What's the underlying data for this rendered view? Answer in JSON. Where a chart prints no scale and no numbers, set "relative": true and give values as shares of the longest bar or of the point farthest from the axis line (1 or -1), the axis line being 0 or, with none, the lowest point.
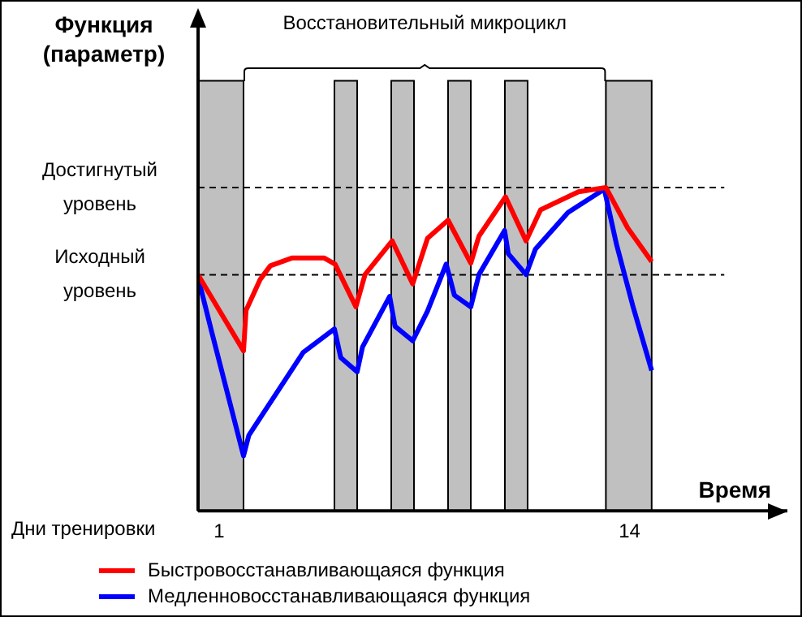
{
  "chart_data": {
    "type": "line",
    "relative": true,
    "xlabel": "Время",
    "xlim": [
      0.33,
      19
    ],
    "xticks": [
      1,
      14
    ],
    "series": [
      {
        "name": "Быстровосстанавливающаяся функция",
        "color": "#ff0000",
        "x": [
          0.33,
          1.77,
          1.85,
          2.3,
          2.62,
          3.3,
          4.33,
          4.67,
          5.33,
          5.62,
          6.48,
          7.13,
          7.6,
          8.25,
          8.97,
          9.23,
          10.07,
          10.72,
          11.18,
          12.38,
          13.25,
          13.94,
          14.7
        ],
        "values": [
          0.73,
          0.495,
          0.62,
          0.716,
          0.758,
          0.782,
          0.782,
          0.763,
          0.631,
          0.731,
          0.835,
          0.702,
          0.843,
          0.899,
          0.766,
          0.85,
          0.971,
          0.835,
          0.931,
          0.987,
          1.0,
          0.875,
          0.771
        ]
      },
      {
        "name": "Медленновосстанавливающаяся функция",
        "color": "#0000ff",
        "x": [
          0.33,
          0.76,
          1.77,
          1.94,
          2.8,
          3.66,
          4.65,
          4.85,
          5.37,
          5.54,
          6.4,
          6.57,
          7.13,
          7.6,
          8.19,
          8.45,
          8.97,
          9.23,
          10.04,
          10.16,
          10.72,
          11.02,
          12.05,
          13.2,
          13.58,
          14.1,
          14.7
        ],
        "values": [
          0.722,
          0.554,
          0.17,
          0.234,
          0.362,
          0.49,
          0.5625,
          0.474,
          0.43,
          0.507,
          0.663,
          0.571,
          0.526,
          0.618,
          0.763,
          0.667,
          0.631,
          0.731,
          0.867,
          0.795,
          0.731,
          0.81,
          0.923,
          0.995,
          0.827,
          0.635,
          0.434
        ]
      }
    ],
    "bands": [
      {
        "axis": "x",
        "from": 0.33,
        "to": 1.77,
        "color": "#c0c0c0"
      },
      {
        "axis": "x",
        "from": 4.65,
        "to": 5.37,
        "color": "#c0c0c0"
      },
      {
        "axis": "x",
        "from": 6.45,
        "to": 7.17,
        "color": "#c0c0c0"
      },
      {
        "axis": "x",
        "from": 8.25,
        "to": 8.97,
        "color": "#c0c0c0"
      },
      {
        "axis": "x",
        "from": 10.05,
        "to": 10.77,
        "color": "#c0c0c0"
      },
      {
        "axis": "x",
        "from": 13.25,
        "to": 14.7,
        "color": "#c0c0c0"
      }
    ],
    "ref_lines": [
      {
        "axis": "y",
        "value": 1.0,
        "label": "Достигнутый уровень",
        "color": "#000000",
        "line_style": "dashed"
      },
      {
        "axis": "y",
        "value": 0.73,
        "label": "Исходный уровень",
        "color": "#000000",
        "line_style": "dashed"
      }
    ],
    "annotations": [
      "Восстановительный микроцикл",
      "Дни тренировки",
      "Функция (параметр)"
    ],
    "legend": "bottom",
    "grid": false,
    "marker": "none",
    "line_style": "solid"
  }
}
